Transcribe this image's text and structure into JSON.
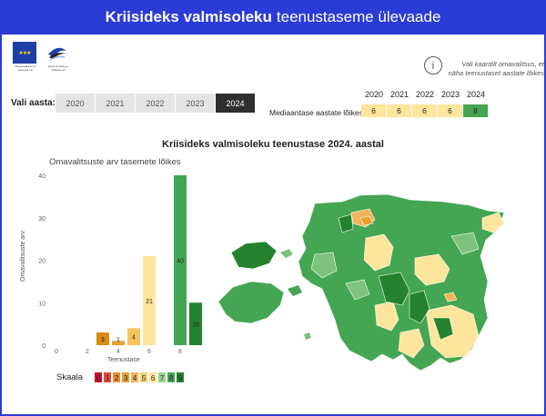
{
  "header": {
    "title_bold": "Kriisideks valmisoleku",
    "title_rest": "teenustaseme ülevaade"
  },
  "logos": {
    "eu_caption": "Regionaalarengu Euroopa Liit",
    "ee_caption": "Eesti Linnade ja Valdade Liit"
  },
  "info": {
    "icon": "info-icon",
    "text": "Vali kaardilt omavalitsus, et näha teenustaset aastate lõikes"
  },
  "year_selector": {
    "label": "Vali aasta:",
    "options": [
      "2020",
      "2021",
      "2022",
      "2023",
      "2024"
    ],
    "selected": "2024"
  },
  "median": {
    "label": "Mediaantase aastate lõikes",
    "years": [
      "2020",
      "2021",
      "2022",
      "2023",
      "2024"
    ],
    "values": [
      "6",
      "6",
      "6",
      "6",
      "8"
    ],
    "colors": [
      "#fde59b",
      "#fde59b",
      "#fde59b",
      "#fde59b",
      "#44a552"
    ]
  },
  "chart_title": "Kriisideks valmisoleku teenustase 2024. aastal",
  "chart_subtitle": "Omavalitsuste arv tasemete lõikes",
  "chart_data": {
    "type": "bar",
    "title": "Kriisideks valmisoleku teenustase 2024. aastal",
    "subtitle": "Omavalitsuste arv tasemete lõikes",
    "xlabel": "Teenustase",
    "ylabel": "Omavalitsuste arv",
    "ylim": [
      0,
      40
    ],
    "yticks": [
      0,
      10,
      20,
      30,
      40
    ],
    "xticks": [
      0,
      2,
      4,
      6,
      8
    ],
    "categories": [
      0,
      1,
      2,
      3,
      4,
      5,
      6,
      7,
      8,
      9
    ],
    "values": [
      0,
      0,
      0,
      3,
      1,
      4,
      21,
      0,
      40,
      10
    ],
    "colors": [
      "#c8102e",
      "#e24a33",
      "#e8762b",
      "#d98b12",
      "#e8a030",
      "#f6c560",
      "#fde59b",
      "#7dc37d",
      "#44a552",
      "#23812f"
    ],
    "grid": false
  },
  "scale": {
    "label": "Skaala",
    "levels": [
      "0",
      "1",
      "2",
      "3",
      "4",
      "5",
      "6",
      "7",
      "8",
      "9"
    ],
    "colors": [
      "#c8102e",
      "#e24a33",
      "#f08a2a",
      "#e8a030",
      "#f2b45a",
      "#f6cf72",
      "#fde59b",
      "#9bd18f",
      "#44a552",
      "#23812f"
    ]
  }
}
